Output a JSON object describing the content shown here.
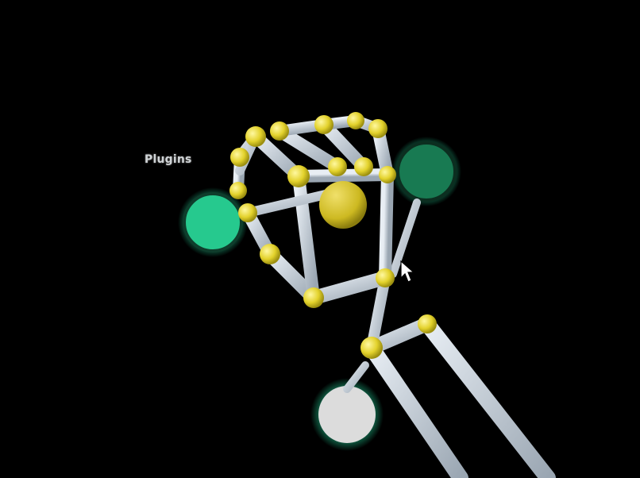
{
  "scene": {
    "label": "Plugins",
    "colors": {
      "background": "#000000",
      "bone": "#c9d3dd",
      "joint": "#e3d22c",
      "palm_sphere": "#d7c52a",
      "button_teal": "#26c98e",
      "button_dark_green": "#187a52",
      "button_white": "#dcdcdc",
      "glow": "#1fbf8a"
    },
    "icons": [
      "hand-skeleton-icon",
      "mouse-cursor-icon"
    ]
  }
}
